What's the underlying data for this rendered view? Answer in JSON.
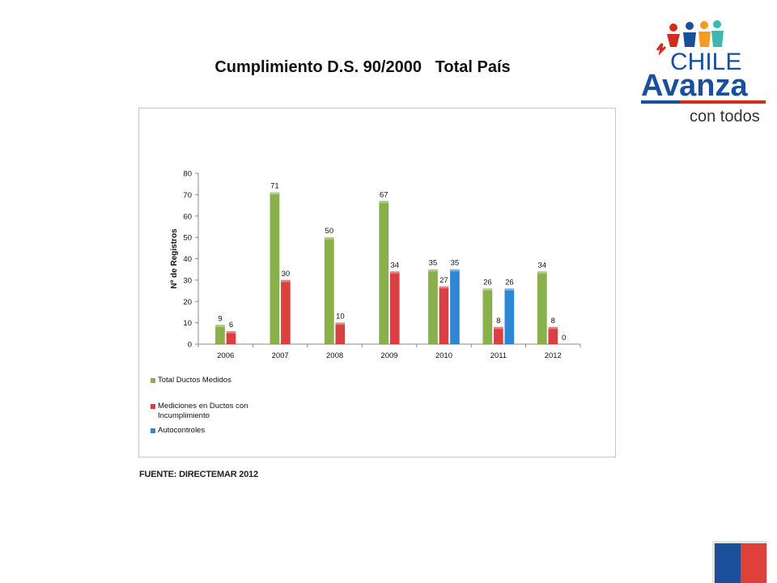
{
  "slide": {
    "title": "Cumplimiento D.S. 90/2000   Total País",
    "source": "FUENTE: DIRECTEMAR 2012"
  },
  "logo": {
    "line1": "CHILE",
    "line2": "Avanza",
    "line3": "con todos"
  },
  "colors": {
    "green": "#8ab04a",
    "red": "#d9403f",
    "blue": "#2f86d2",
    "logo_blue": "#1a4f9c",
    "logo_red": "#d52b1e"
  },
  "chart_data": {
    "type": "bar",
    "title": "",
    "xlabel": "",
    "ylabel": "Nº de Registros",
    "ylim": [
      0,
      80
    ],
    "yticks": [
      0,
      10,
      20,
      30,
      40,
      50,
      60,
      70,
      80
    ],
    "grid": false,
    "legend_position": "bottom-left",
    "categories": [
      "2006",
      "2007",
      "2008",
      "2009",
      "2010",
      "2011",
      "2012"
    ],
    "series": [
      {
        "name": "Total Ductos Medidos",
        "color": "#8ab04a",
        "values": [
          9,
          71,
          50,
          67,
          35,
          26,
          34
        ]
      },
      {
        "name": "Mediciones en Ductos con Incumplimiento",
        "color": "#d9403f",
        "values": [
          6,
          30,
          10,
          34,
          27,
          8,
          8
        ]
      },
      {
        "name": "Autocontroles",
        "color": "#2f86d2",
        "values": [
          null,
          null,
          null,
          null,
          35,
          26,
          0
        ]
      }
    ]
  }
}
